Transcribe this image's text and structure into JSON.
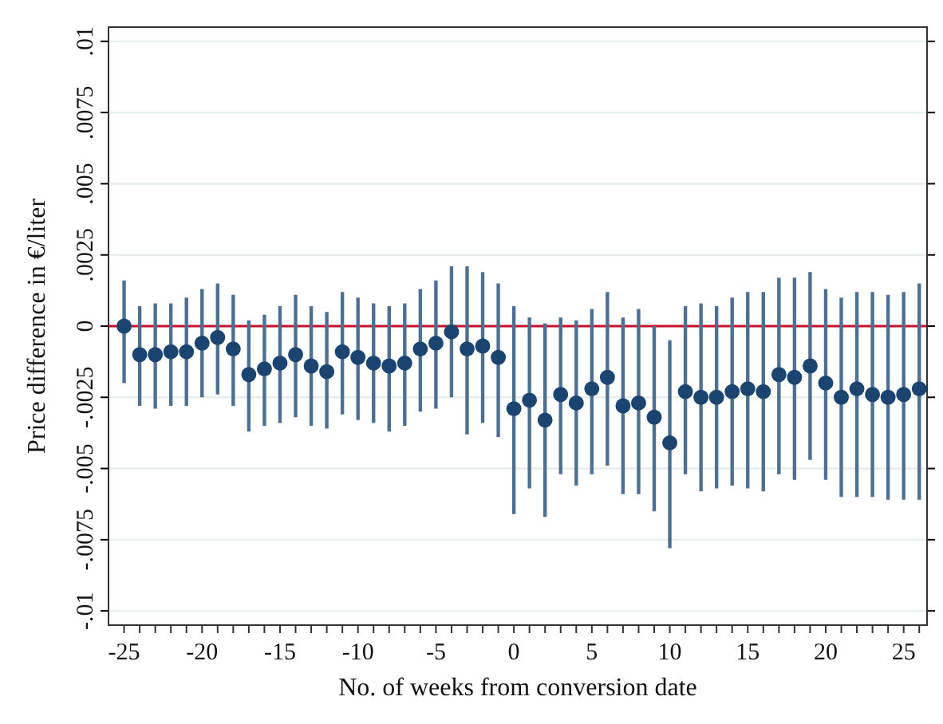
{
  "chart_data": {
    "type": "scatter",
    "xlabel": "No. of weeks from conversion date",
    "ylabel": "Price difference in €/liter",
    "x": [
      -25,
      -24,
      -23,
      -22,
      -21,
      -20,
      -19,
      -18,
      -17,
      -16,
      -15,
      -14,
      -13,
      -12,
      -11,
      -10,
      -9,
      -8,
      -7,
      -6,
      -5,
      -4,
      -3,
      -2,
      -1,
      0,
      1,
      2,
      3,
      4,
      5,
      6,
      7,
      8,
      9,
      10,
      11,
      12,
      13,
      14,
      15,
      16,
      17,
      18,
      19,
      20,
      21,
      22,
      23,
      24,
      25,
      26
    ],
    "series": [
      {
        "color": "#1b4470",
        "values": [
          0,
          -0.001,
          -0.001,
          -0.0009,
          -0.0009,
          -0.0006,
          -0.0004,
          -0.0008,
          -0.0017,
          -0.0015,
          -0.0013,
          -0.001,
          -0.0014,
          -0.0016,
          -0.0009,
          -0.0011,
          -0.0013,
          -0.0014,
          -0.0013,
          -0.0008,
          -0.0006,
          -0.0002,
          -0.0008,
          -0.0007,
          -0.0011,
          -0.0029,
          -0.0026,
          -0.0033,
          -0.0024,
          -0.0027,
          -0.0022,
          -0.0018,
          -0.0028,
          -0.0027,
          -0.0032,
          -0.0041,
          -0.0023,
          -0.0025,
          -0.0025,
          -0.0023,
          -0.0022,
          -0.0023,
          -0.0017,
          -0.0018,
          -0.0014,
          -0.002,
          -0.0025,
          -0.0022,
          -0.0024,
          -0.0025,
          -0.0024,
          -0.0022
        ],
        "errors": [
          [
            -0.002,
            0.0016
          ],
          [
            -0.0028,
            0.0007
          ],
          [
            -0.0029,
            0.0008
          ],
          [
            -0.0028,
            0.0008
          ],
          [
            -0.0028,
            0.001
          ],
          [
            -0.0025,
            0.0013
          ],
          [
            -0.0024,
            0.0015
          ],
          [
            -0.0028,
            0.0011
          ],
          [
            -0.0037,
            0.0002
          ],
          [
            -0.0035,
            0.0004
          ],
          [
            -0.0034,
            0.0007
          ],
          [
            -0.0032,
            0.0011
          ],
          [
            -0.0035,
            0.0007
          ],
          [
            -0.0036,
            0.0005
          ],
          [
            -0.0031,
            0.0012
          ],
          [
            -0.0033,
            0.001
          ],
          [
            -0.0034,
            0.0008
          ],
          [
            -0.0037,
            0.0007
          ],
          [
            -0.0035,
            0.0008
          ],
          [
            -0.003,
            0.0013
          ],
          [
            -0.0029,
            0.0016
          ],
          [
            -0.0025,
            0.0021
          ],
          [
            -0.0038,
            0.0021
          ],
          [
            -0.0034,
            0.0019
          ],
          [
            -0.0039,
            0.0015
          ],
          [
            -0.0066,
            0.0007
          ],
          [
            -0.0057,
            0.0003
          ],
          [
            -0.0067,
            0.0001
          ],
          [
            -0.0052,
            0.0003
          ],
          [
            -0.0056,
            0.0002
          ],
          [
            -0.0052,
            0.0006
          ],
          [
            -0.0049,
            0.0012
          ],
          [
            -0.0059,
            0.0003
          ],
          [
            -0.0059,
            0.0006
          ],
          [
            -0.0065,
            0
          ],
          [
            -0.0078,
            -0.0005
          ],
          [
            -0.0052,
            0.0007
          ],
          [
            -0.0058,
            0.0008
          ],
          [
            -0.0057,
            0.0007
          ],
          [
            -0.0056,
            0.001
          ],
          [
            -0.0057,
            0.0012
          ],
          [
            -0.0058,
            0.0012
          ],
          [
            -0.0052,
            0.0017
          ],
          [
            -0.0054,
            0.0017
          ],
          [
            -0.0047,
            0.0019
          ],
          [
            -0.0054,
            0.0013
          ],
          [
            -0.006,
            0.001
          ],
          [
            -0.006,
            0.0012
          ],
          [
            -0.006,
            0.0012
          ],
          [
            -0.0061,
            0.0011
          ],
          [
            -0.0061,
            0.0012
          ],
          [
            -0.0061,
            0.0015
          ]
        ]
      }
    ],
    "xlim": [
      -26,
      26.5
    ],
    "xticks": [
      -25,
      {
        "value": -24,
        "label": null
      },
      {
        "value": -23,
        "label": null
      },
      {
        "value": -22,
        "label": null
      },
      {
        "value": -21,
        "label": null
      },
      -20,
      {
        "value": -19,
        "label": null
      },
      {
        "value": -18,
        "label": null
      },
      {
        "value": -17,
        "label": null
      },
      {
        "value": -16,
        "label": null
      },
      -15,
      {
        "value": -14,
        "label": null
      },
      {
        "value": -13,
        "label": null
      },
      {
        "value": -12,
        "label": null
      },
      {
        "value": -11,
        "label": null
      },
      -10,
      {
        "value": -9,
        "label": null
      },
      {
        "value": -8,
        "label": null
      },
      {
        "value": -7,
        "label": null
      },
      {
        "value": -6,
        "label": null
      },
      -5,
      {
        "value": -4,
        "label": null
      },
      {
        "value": -3,
        "label": null
      },
      {
        "value": -2,
        "label": null
      },
      {
        "value": -1,
        "label": null
      },
      0,
      {
        "value": 1,
        "label": null
      },
      {
        "value": 2,
        "label": null
      },
      {
        "value": 3,
        "label": null
      },
      {
        "value": 4,
        "label": null
      },
      5,
      {
        "value": 6,
        "label": null
      },
      {
        "value": 7,
        "label": null
      },
      {
        "value": 8,
        "label": null
      },
      {
        "value": 9,
        "label": null
      },
      10,
      {
        "value": 11,
        "label": null
      },
      {
        "value": 12,
        "label": null
      },
      {
        "value": 13,
        "label": null
      },
      {
        "value": 14,
        "label": null
      },
      15,
      {
        "value": 16,
        "label": null
      },
      {
        "value": 17,
        "label": null
      },
      {
        "value": 18,
        "label": null
      },
      {
        "value": 19,
        "label": null
      },
      20,
      {
        "value": 21,
        "label": null
      },
      {
        "value": 22,
        "label": null
      },
      {
        "value": 23,
        "label": null
      },
      {
        "value": 24,
        "label": null
      },
      25,
      {
        "value": 26,
        "label": null
      }
    ],
    "ylim": [
      -0.0105,
      0.0105
    ],
    "yticks": [
      {
        "value": -0.01,
        "label": "-.01"
      },
      {
        "value": -0.0075,
        "label": "-.0075"
      },
      {
        "value": -0.005,
        "label": "-.005"
      },
      {
        "value": -0.0025,
        "label": "-.0025"
      },
      0,
      {
        "value": 0.0025,
        "label": ".0025"
      },
      {
        "value": 0.005,
        "label": ".005"
      },
      {
        "value": 0.0075,
        "label": ".0075"
      },
      {
        "value": 0.01,
        "label": ".01"
      }
    ],
    "grid": "y",
    "marker": "circle",
    "ref_lines": [
      {
        "axis": "y",
        "value": 0,
        "color": "#c8102e"
      }
    ]
  }
}
